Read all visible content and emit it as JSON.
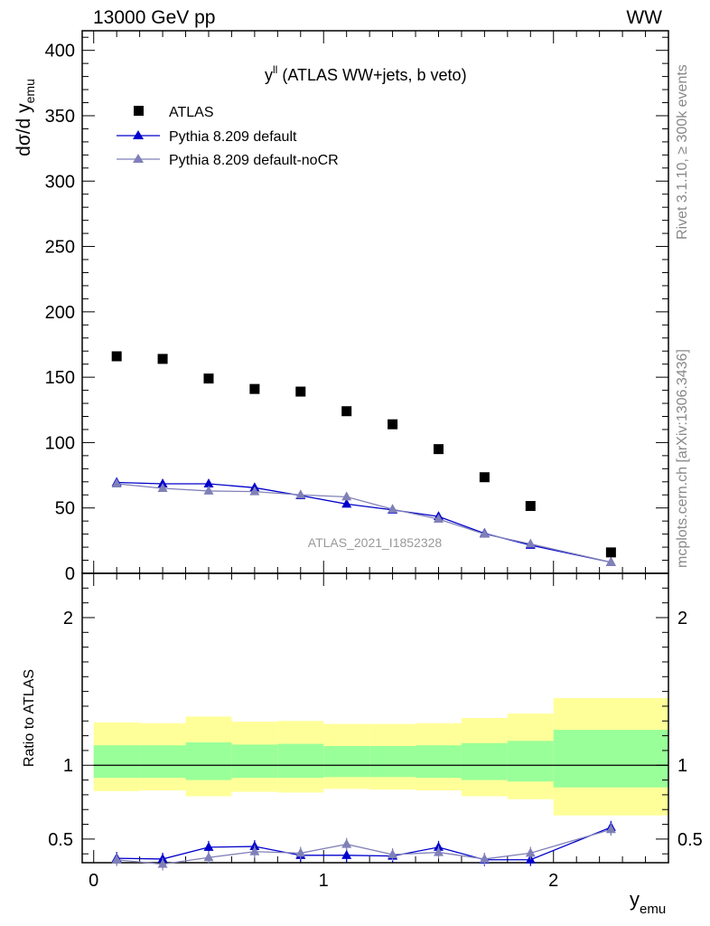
{
  "header": {
    "energy_label": "13000 GeV pp",
    "process_label": "WW"
  },
  "side_labels": {
    "rivet": "Rivet 3.1.10, ≥ 300k events",
    "mcplots": "mcplots.cern.ch [arXiv:1306.3436]"
  },
  "chart_data": {
    "type": "scatter",
    "title_main": "y",
    "title_sup": "ll",
    "title_rest": " (ATLAS WW+jets, b veto)",
    "watermark": "ATLAS_2021_I1852328",
    "ylabel_main": "dσ/d y",
    "ylabel_sub": "emu",
    "xlabel_main": "y",
    "xlabel_sub": "emu",
    "ratio_ylabel": "Ratio to ATLAS",
    "xlim": [
      -0.05,
      2.5
    ],
    "ylim": [
      0,
      415
    ],
    "ratio_ylim": [
      0.34,
      2.3
    ],
    "yticks": [
      0,
      50,
      100,
      150,
      200,
      250,
      300,
      350,
      400
    ],
    "xticks": [
      0,
      1,
      2
    ],
    "ratio_yticks": [
      0.5,
      1,
      2
    ],
    "bin_edges": [
      0,
      0.2,
      0.4,
      0.6,
      0.8,
      1.0,
      1.2,
      1.4,
      1.6,
      1.8,
      2.0,
      2.5
    ],
    "x": [
      0.1,
      0.3,
      0.5,
      0.7,
      0.9,
      1.1,
      1.3,
      1.5,
      1.7,
      1.9,
      2.25
    ],
    "data": {
      "name": "ATLAS",
      "values": [
        166,
        164,
        149,
        141,
        139,
        124,
        114,
        95,
        73.5,
        51.5,
        16
      ]
    },
    "series": [
      {
        "name": "Pythia 8.209 default",
        "color": "#0000cc",
        "values": [
          69.5,
          68.5,
          68.5,
          65.5,
          59.5,
          53,
          48.5,
          43.5,
          30.5,
          21.5,
          8.5
        ],
        "ratio": [
          0.37,
          0.365,
          0.445,
          0.45,
          0.39,
          0.39,
          0.385,
          0.445,
          0.36,
          0.36,
          0.58
        ]
      },
      {
        "name": "Pythia 8.209 default-noCR",
        "color": "#8080b8",
        "values": [
          68.5,
          65,
          63,
          62.5,
          60,
          58.5,
          49,
          41.5,
          30,
          22.5,
          8.5
        ],
        "ratio": [
          0.36,
          0.33,
          0.375,
          0.415,
          0.405,
          0.465,
          0.395,
          0.41,
          0.365,
          0.405,
          0.565
        ]
      }
    ],
    "ratio_bands": {
      "green_low": [
        0.915,
        0.915,
        0.9,
        0.915,
        0.915,
        0.92,
        0.92,
        0.915,
        0.9,
        0.89,
        0.85
      ],
      "green_high": [
        1.135,
        1.135,
        1.155,
        1.14,
        1.145,
        1.13,
        1.13,
        1.135,
        1.15,
        1.165,
        1.24
      ],
      "yellow_low": [
        0.825,
        0.83,
        0.79,
        0.82,
        0.815,
        0.84,
        0.835,
        0.83,
        0.79,
        0.77,
        0.66
      ],
      "yellow_high": [
        1.29,
        1.285,
        1.33,
        1.295,
        1.3,
        1.28,
        1.28,
        1.285,
        1.32,
        1.35,
        1.455
      ]
    },
    "legend_position": "top-left"
  }
}
